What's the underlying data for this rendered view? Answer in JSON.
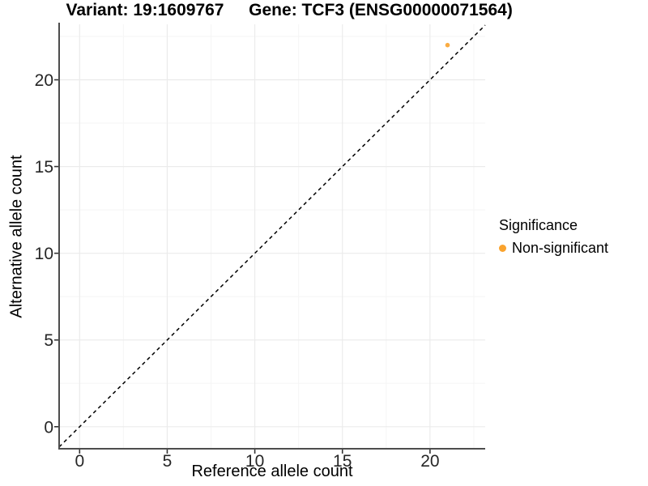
{
  "chart_data": {
    "type": "scatter",
    "titles": {
      "variant": "Variant: 19:1609767",
      "gene": "Gene: TCF3 (ENSG00000071564)"
    },
    "xlabel": "Reference allele count",
    "ylabel": "Alternative allele count",
    "xlim": [
      -1.17,
      23.15
    ],
    "ylim": [
      -1.27,
      23.2
    ],
    "xticks": [
      0,
      5,
      10,
      15,
      20
    ],
    "yticks": [
      0,
      5,
      10,
      15,
      20
    ],
    "minor_tick_interval": 2.5,
    "grid": true,
    "identity_line": {
      "equation": "y = x",
      "style": "dashed",
      "color": "#000000"
    },
    "series": [
      {
        "name": "Non-significant",
        "color": "#FAA32D",
        "points": [
          {
            "x": 21,
            "y": 22
          }
        ]
      }
    ],
    "legend": {
      "title": "Significance",
      "position": "right",
      "items": [
        {
          "label": "Non-significant",
          "color": "#FAA32D",
          "marker": "dot-icon"
        }
      ]
    },
    "colors": {
      "background": "#ffffff",
      "grid_major": "#ebebeb",
      "grid_minor": "#f5f5f5",
      "axis_line": "#4d4d4d",
      "tick_mark": "#333333",
      "tick_label": "#262626"
    }
  }
}
